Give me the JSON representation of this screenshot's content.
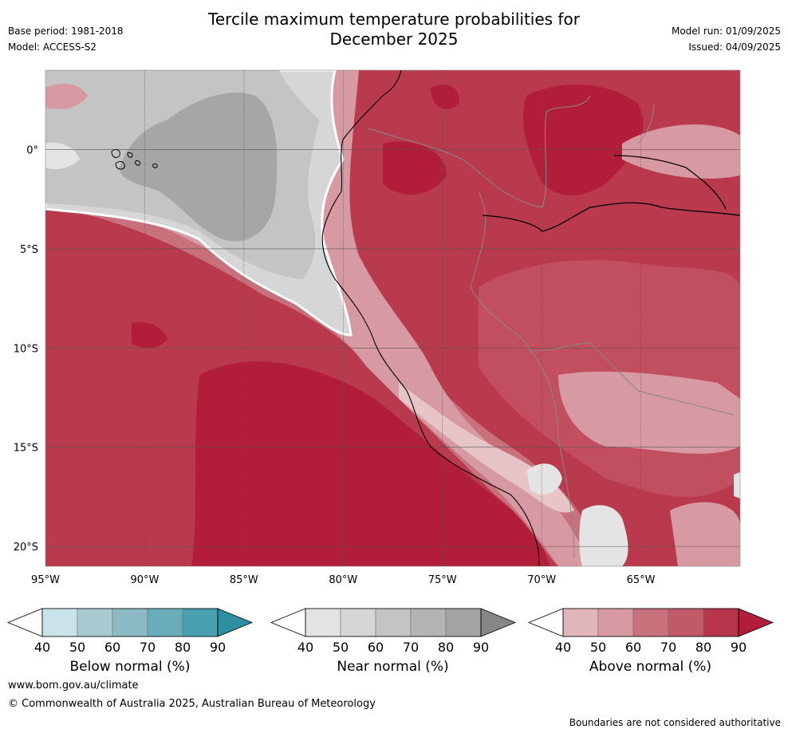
{
  "header": {
    "title_line1": "Tercile maximum temperature probabilities for",
    "title_line2": "December 2025",
    "base_period": "Base period: 1981-2018",
    "model": "Model: ACCESS-S2",
    "model_run": "Model run: 01/09/2025",
    "issued": "Issued: 04/09/2025"
  },
  "map": {
    "lon_range": [
      -95,
      -60
    ],
    "lat_range": [
      -21,
      4
    ],
    "lon_ticks": [
      {
        "value": -95,
        "label": "95°W"
      },
      {
        "value": -90,
        "label": "90°W"
      },
      {
        "value": -85,
        "label": "85°W"
      },
      {
        "value": -80,
        "label": "80°W"
      },
      {
        "value": -75,
        "label": "75°W"
      },
      {
        "value": -70,
        "label": "70°W"
      },
      {
        "value": -65,
        "label": "65°W"
      }
    ],
    "lat_ticks": [
      {
        "value": 0,
        "label": "0°"
      },
      {
        "value": -5,
        "label": "5°S"
      },
      {
        "value": -10,
        "label": "10°S"
      },
      {
        "value": -15,
        "label": "15°S"
      },
      {
        "value": -20,
        "label": "20°S"
      }
    ],
    "colors": {
      "near_60": "#d6d6d6",
      "near_70": "#c4c4c4",
      "near_80": "#a6a6a6",
      "above_50": "#d79aa2",
      "above_60": "#c8707c",
      "above_70": "#c14f5f",
      "above_80": "#b83a4c",
      "above_90": "#b21e3a",
      "coast": "#000000",
      "border": "#888888"
    }
  },
  "colorbars": [
    {
      "label": "Below normal (%)",
      "ticks": [
        "40",
        "50",
        "60",
        "70",
        "80",
        "90"
      ],
      "colors": [
        "#ffffff",
        "#c9e3e8",
        "#a8cbd1",
        "#8bbac4",
        "#6aadba",
        "#48a0b1",
        "#2e8fa3"
      ]
    },
    {
      "label": "Near normal (%)",
      "ticks": [
        "40",
        "50",
        "60",
        "70",
        "80",
        "90"
      ],
      "colors": [
        "#ffffff",
        "#e3e3e3",
        "#d6d6d6",
        "#c4c4c4",
        "#b4b4b4",
        "#a3a3a3",
        "#868686"
      ]
    },
    {
      "label": "Above normal (%)",
      "ticks": [
        "40",
        "50",
        "60",
        "70",
        "80",
        "90"
      ],
      "colors": [
        "#ffffff",
        "#e0b6bb",
        "#d79aa2",
        "#c8707c",
        "#c15968",
        "#b8364b",
        "#b21e3a"
      ]
    }
  ],
  "footer": {
    "website": "www.bom.gov.au/climate",
    "copyright": "© Commonwealth of Australia 2025, Australian Bureau of Meteorology",
    "disclaimer": "Boundaries are not considered authoritative"
  }
}
